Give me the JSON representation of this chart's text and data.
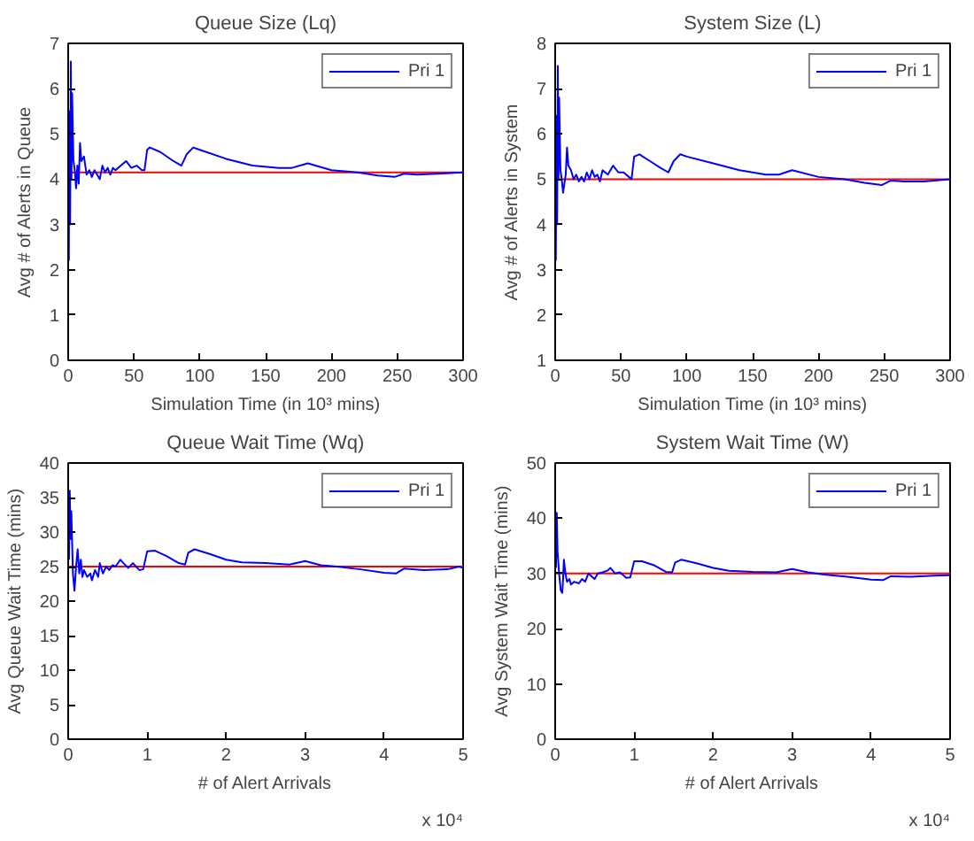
{
  "chart_data": [
    {
      "type": "line",
      "title": "Queue Size (Lq)",
      "xlabel": "Simulation Time (in 10³ mins)",
      "ylabel": "Avg # of Alerts in Queue",
      "xlim": [
        0,
        300
      ],
      "ylim": [
        0,
        7
      ],
      "xticks": [
        0,
        50,
        100,
        150,
        200,
        250,
        300
      ],
      "yticks": [
        0,
        1,
        2,
        3,
        4,
        5,
        6,
        7
      ],
      "grid": false,
      "legend": "top right",
      "marker": "none",
      "line_style": "solid",
      "ref_lines": [
        {
          "axis": "y",
          "value": 4.15,
          "color": "#ff0000"
        }
      ],
      "series": [
        {
          "name": "Pri 1",
          "color": "#0000ff",
          "x": [
            0.5,
            1,
            1.5,
            2,
            2.5,
            3,
            4,
            5,
            6,
            7,
            8,
            9,
            10,
            12,
            14,
            16,
            18,
            20,
            22,
            24,
            26,
            28,
            30,
            32,
            34,
            36,
            40,
            44,
            48,
            52,
            56,
            58,
            60,
            62,
            70,
            80,
            86,
            90,
            95,
            100,
            120,
            140,
            160,
            170,
            182,
            200,
            220,
            235,
            248,
            255,
            265,
            280,
            300
          ],
          "values": [
            2.2,
            5.5,
            3.0,
            6.6,
            4.0,
            5.9,
            4.4,
            4.2,
            3.8,
            4.3,
            3.9,
            4.8,
            4.4,
            4.5,
            4.1,
            4.2,
            4.05,
            4.2,
            4.1,
            4.0,
            4.3,
            4.15,
            4.25,
            4.1,
            4.25,
            4.2,
            4.3,
            4.4,
            4.25,
            4.3,
            4.2,
            4.2,
            4.65,
            4.7,
            4.6,
            4.4,
            4.3,
            4.55,
            4.7,
            4.65,
            4.45,
            4.3,
            4.25,
            4.25,
            4.35,
            4.2,
            4.15,
            4.08,
            4.05,
            4.12,
            4.1,
            4.12,
            4.15
          ]
        }
      ]
    },
    {
      "type": "line",
      "title": "System Size (L)",
      "xlabel": "Simulation Time (in 10³ mins)",
      "ylabel": "Avg # of Alerts in System",
      "xlim": [
        0,
        300
      ],
      "ylim": [
        1,
        8
      ],
      "xticks": [
        0,
        50,
        100,
        150,
        200,
        250,
        300
      ],
      "yticks": [
        1,
        2,
        3,
        4,
        5,
        6,
        7,
        8
      ],
      "grid": false,
      "legend": "top right",
      "marker": "none",
      "line_style": "solid",
      "ref_lines": [
        {
          "axis": "y",
          "value": 5,
          "color": "#ff0000"
        }
      ],
      "series": [
        {
          "name": "Pri 1",
          "color": "#0000ff",
          "x": [
            0.5,
            1,
            1.5,
            2,
            2.5,
            3,
            4,
            5,
            6,
            8,
            9,
            10,
            12,
            14,
            16,
            18,
            20,
            22,
            24,
            26,
            28,
            30,
            32,
            34,
            36,
            40,
            44,
            48,
            52,
            56,
            58,
            60,
            64,
            72,
            80,
            86,
            90,
            95,
            100,
            120,
            140,
            160,
            170,
            180,
            200,
            220,
            235,
            248,
            255,
            265,
            280,
            300
          ],
          "values": [
            3.2,
            6.4,
            4.0,
            7.5,
            5.0,
            6.8,
            5.2,
            5.0,
            4.7,
            5.1,
            5.7,
            5.3,
            5.2,
            5.0,
            5.1,
            4.95,
            5.05,
            4.95,
            5.15,
            5.0,
            5.2,
            5.05,
            5.1,
            4.95,
            5.2,
            5.1,
            5.3,
            5.15,
            5.15,
            5.05,
            5.0,
            5.5,
            5.55,
            5.4,
            5.25,
            5.15,
            5.4,
            5.55,
            5.5,
            5.35,
            5.2,
            5.1,
            5.1,
            5.2,
            5.05,
            5.0,
            4.92,
            4.87,
            4.97,
            4.95,
            4.95,
            5.0
          ]
        }
      ]
    },
    {
      "type": "line",
      "title": "Queue Wait Time (Wq)",
      "xlabel": "# of Alert Arrivals",
      "ylabel": "Avg Queue Wait Time (mins)",
      "annotations": [
        "x 10⁴"
      ],
      "xlim": [
        0,
        5
      ],
      "ylim": [
        0,
        40
      ],
      "xticks": [
        0,
        1,
        2,
        3,
        4,
        5
      ],
      "yticks": [
        0,
        5,
        10,
        15,
        20,
        25,
        30,
        35,
        40
      ],
      "grid": false,
      "legend": "top right",
      "marker": "none",
      "line_style": "solid",
      "ref_lines": [
        {
          "axis": "y",
          "value": 25,
          "color": "#ff0000"
        }
      ],
      "series": [
        {
          "name": "Pri 1",
          "color": "#0000ff",
          "x": [
            0.01,
            0.02,
            0.03,
            0.04,
            0.06,
            0.08,
            0.1,
            0.12,
            0.14,
            0.16,
            0.18,
            0.2,
            0.24,
            0.28,
            0.3,
            0.34,
            0.38,
            0.4,
            0.44,
            0.48,
            0.52,
            0.56,
            0.6,
            0.66,
            0.7,
            0.76,
            0.82,
            0.9,
            0.95,
            1.0,
            1.1,
            1.25,
            1.4,
            1.48,
            1.52,
            1.6,
            1.8,
            2.0,
            2.2,
            2.5,
            2.8,
            3.0,
            3.2,
            3.4,
            3.7,
            4.0,
            4.15,
            4.25,
            4.5,
            4.8,
            4.95,
            5.0
          ],
          "values": [
            26,
            36,
            29,
            33,
            24,
            21.5,
            25,
            27.5,
            24,
            26,
            23.5,
            24.5,
            23.5,
            24,
            23,
            24.5,
            23.5,
            25.5,
            24,
            25,
            24.5,
            25.2,
            25,
            26,
            25.5,
            24.8,
            25.5,
            24.5,
            24.6,
            27.2,
            27.3,
            26.5,
            25.5,
            25.3,
            27,
            27.5,
            26.8,
            26,
            25.6,
            25.5,
            25.3,
            25.8,
            25.2,
            25,
            24.6,
            24.1,
            24,
            24.7,
            24.5,
            24.6,
            25,
            24.8
          ]
        }
      ]
    },
    {
      "type": "line",
      "title": "System Wait Time (W)",
      "xlabel": "# of Alert Arrivals",
      "ylabel": "Avg System Wait Time (mins)",
      "annotations": [
        "x 10⁴"
      ],
      "xlim": [
        0,
        5
      ],
      "ylim": [
        0,
        50
      ],
      "xticks": [
        0,
        1,
        2,
        3,
        4,
        5
      ],
      "yticks": [
        0,
        10,
        20,
        30,
        40,
        50
      ],
      "grid": false,
      "legend": "top right",
      "marker": "none",
      "line_style": "solid",
      "ref_lines": [
        {
          "axis": "y",
          "value": 30,
          "color": "#ff0000"
        }
      ],
      "series": [
        {
          "name": "Pri 1",
          "color": "#0000ff",
          "x": [
            0.01,
            0.02,
            0.03,
            0.05,
            0.07,
            0.09,
            0.1,
            0.11,
            0.13,
            0.15,
            0.18,
            0.2,
            0.24,
            0.3,
            0.34,
            0.38,
            0.42,
            0.46,
            0.5,
            0.54,
            0.6,
            0.66,
            0.7,
            0.76,
            0.82,
            0.9,
            0.95,
            1.0,
            1.1,
            1.25,
            1.4,
            1.48,
            1.52,
            1.6,
            1.8,
            2.0,
            2.2,
            2.5,
            2.8,
            3.0,
            3.2,
            3.4,
            3.7,
            4.0,
            4.15,
            4.25,
            4.5,
            4.8,
            5.0
          ],
          "values": [
            31,
            41,
            34,
            30,
            27,
            26.5,
            29,
            32.5,
            30,
            28.5,
            29,
            28,
            28.5,
            28.2,
            29,
            28.5,
            30,
            29.5,
            29,
            30,
            30.2,
            30.5,
            31,
            30,
            30.2,
            29.2,
            29.3,
            32.2,
            32.2,
            31.5,
            30.3,
            30.2,
            32,
            32.5,
            31.8,
            31,
            30.5,
            30.3,
            30.2,
            30.8,
            30.2,
            29.8,
            29.4,
            28.9,
            28.8,
            29.5,
            29.4,
            29.6,
            29.7
          ]
        }
      ]
    }
  ]
}
